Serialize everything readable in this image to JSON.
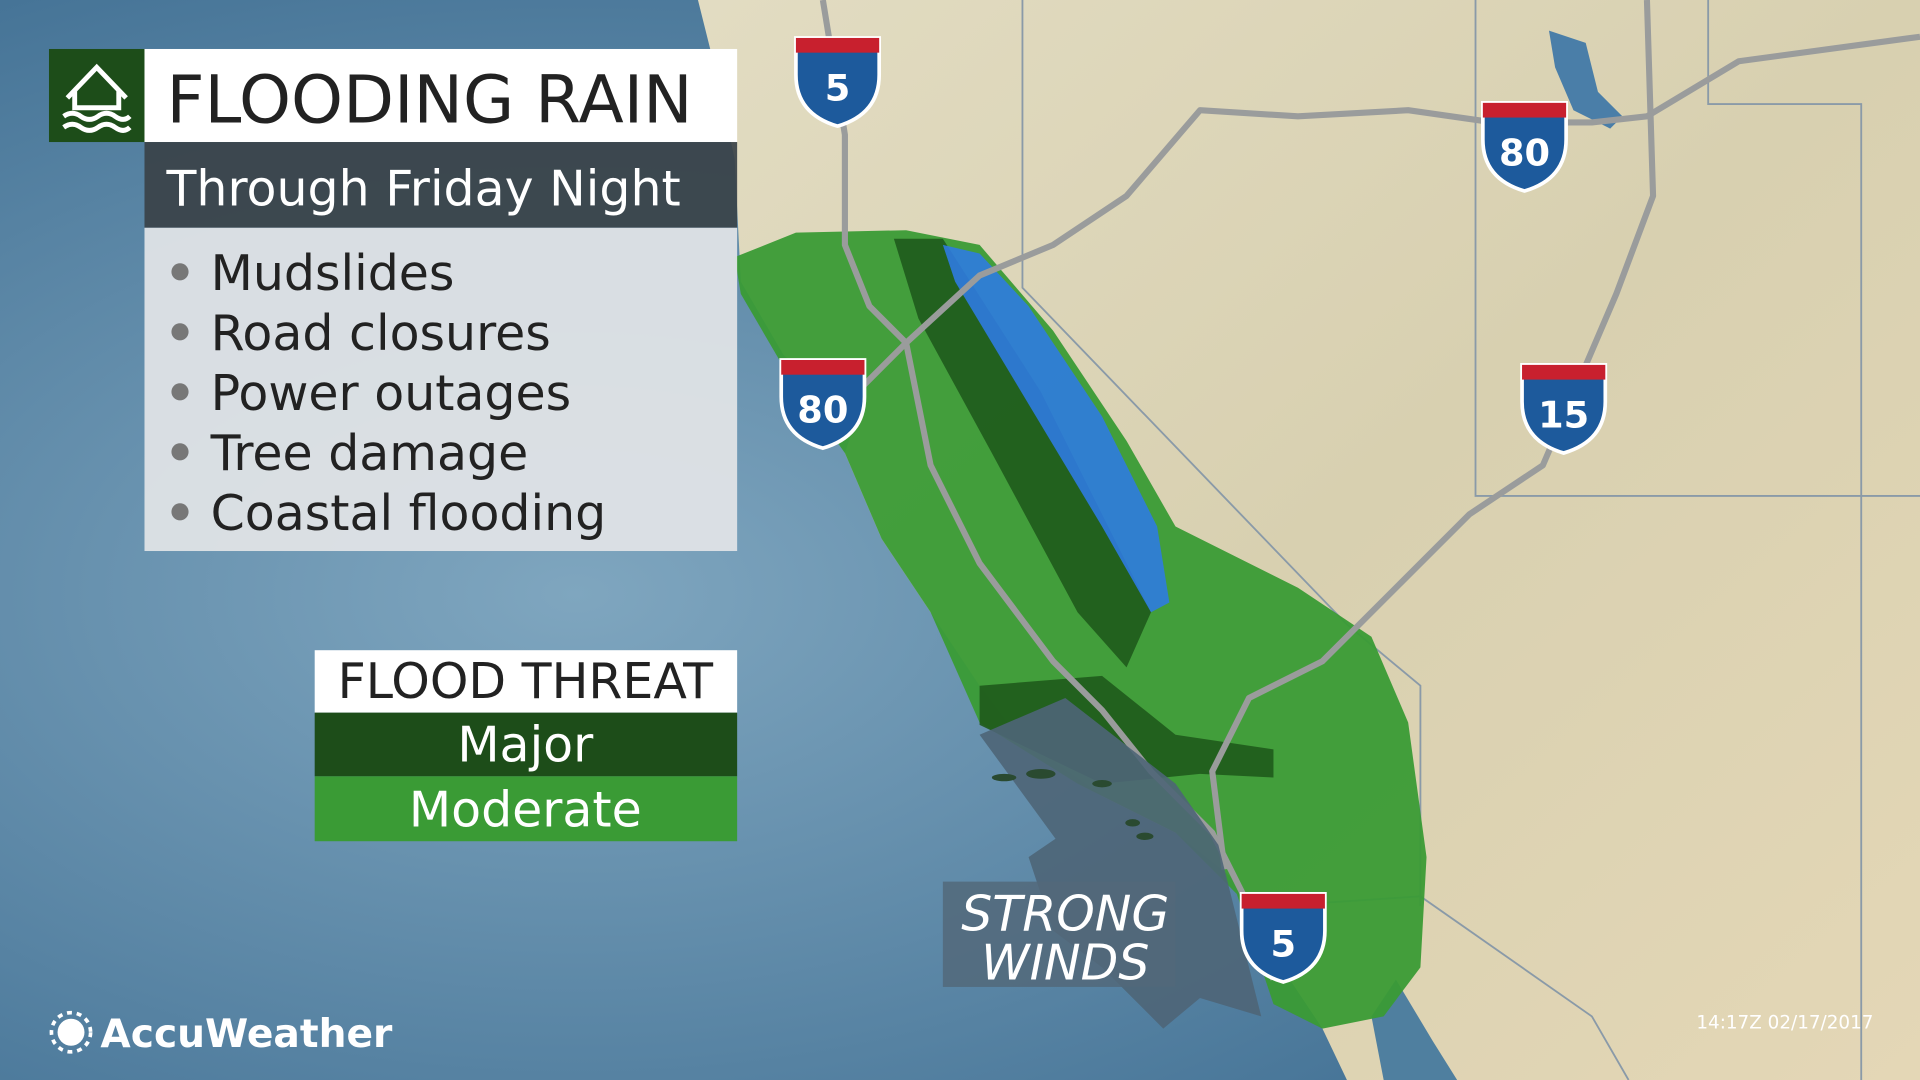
{
  "header": {
    "title": "FLOODING RAIN",
    "subtitle": "Through Friday Night"
  },
  "impacts": [
    "Mudslides",
    "Road closures",
    "Power outages",
    "Tree damage",
    "Coastal flooding"
  ],
  "legend": {
    "title": "FLOOD THREAT",
    "items": [
      "Major",
      "Moderate"
    ]
  },
  "annotation": {
    "lines": [
      "STRONG",
      "WINDS"
    ]
  },
  "shields": [
    "5",
    "80",
    "80",
    "15",
    "5"
  ],
  "footer": {
    "logo": "AccuWeather",
    "timestamp": "14:17Z 02/17/2017"
  }
}
